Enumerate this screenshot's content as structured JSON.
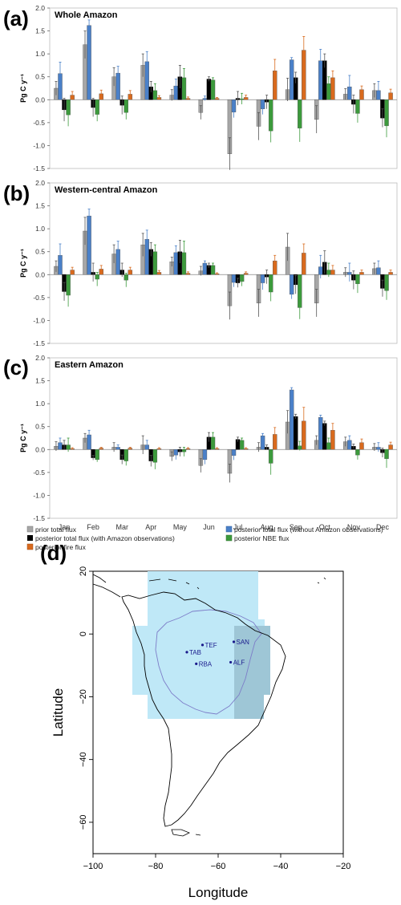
{
  "panel_letters": [
    "(a)",
    "(b)",
    "(c)",
    "(d)"
  ],
  "chart_data": [
    {
      "type": "bar",
      "title": "Whole Amazon",
      "ylabel": "Pg C y⁻¹",
      "ylim": [
        -1.5,
        2.0
      ],
      "yticks": [
        "2.0",
        "1.5",
        "1.0",
        "0.5",
        "0.0",
        "-0.5",
        "-1.0",
        "-1.5"
      ],
      "categories": [
        "Jan",
        "Feb",
        "Mar",
        "Apr",
        "May",
        "Jun",
        "Jul",
        "Aug",
        "Sep",
        "Oct",
        "Nov",
        "Dec"
      ],
      "series": [
        {
          "name": "prior total flux",
          "values": [
            0.25,
            1.2,
            0.5,
            0.75,
            0.1,
            -0.28,
            -1.18,
            -0.58,
            0.22,
            -0.43,
            0.12,
            0.2
          ],
          "errors": [
            0.15,
            0.3,
            0.2,
            0.25,
            0.12,
            0.15,
            0.35,
            0.3,
            0.25,
            0.3,
            0.12,
            0.15
          ]
        },
        {
          "name": "posterior total flux (without Amazon observations)",
          "values": [
            0.57,
            1.62,
            0.58,
            0.83,
            0.3,
            0.03,
            -0.27,
            -0.2,
            0.87,
            0.85,
            0.28,
            0.2
          ],
          "errors": [
            0.25,
            0.12,
            0.15,
            0.22,
            0.15,
            0.05,
            0.12,
            0.12,
            0.05,
            0.25,
            0.25,
            0.2
          ]
        },
        {
          "name": "posterior total flux (with Amazon observations)",
          "values": [
            -0.22,
            -0.17,
            -0.12,
            0.28,
            0.5,
            0.45,
            0.03,
            -0.05,
            0.48,
            0.85,
            -0.1,
            -0.4
          ],
          "errors": [
            0.25,
            0.2,
            0.2,
            0.12,
            0.25,
            0.05,
            0.15,
            0.15,
            0.12,
            0.15,
            0.2,
            0.2
          ]
        },
        {
          "name": "posterior NBE flux",
          "values": [
            -0.33,
            -0.32,
            -0.28,
            0.2,
            0.48,
            0.43,
            0.02,
            -0.68,
            -0.62,
            0.35,
            -0.3,
            -0.57
          ],
          "errors": [
            0.25,
            0.15,
            0.15,
            0.15,
            0.2,
            0.05,
            0.12,
            0.25,
            0.3,
            0.15,
            0.2,
            0.25
          ]
        },
        {
          "name": "posterior fire flux",
          "values": [
            0.1,
            0.13,
            0.12,
            0.05,
            0.03,
            0.03,
            0.05,
            0.63,
            1.08,
            0.48,
            0.22,
            0.15
          ],
          "errors": [
            0.08,
            0.08,
            0.08,
            0.04,
            0.03,
            0.02,
            0.05,
            0.25,
            0.3,
            0.15,
            0.08,
            0.08
          ]
        }
      ]
    },
    {
      "type": "bar",
      "title": "Western-central Amazon",
      "ylabel": "Pg C y⁻¹",
      "ylim": [
        -1.5,
        2.0
      ],
      "yticks": [
        "2.0",
        "1.5",
        "1.0",
        "0.5",
        "0.0",
        "-0.5",
        "-1.0",
        "-1.5"
      ],
      "categories": [
        "Jan",
        "Feb",
        "Mar",
        "Apr",
        "May",
        "Jun",
        "Jul",
        "Aug",
        "Sep",
        "Oct",
        "Nov",
        "Dec"
      ],
      "series": [
        {
          "name": "prior total flux",
          "values": [
            0.18,
            0.95,
            0.45,
            0.65,
            0.28,
            0.08,
            -0.68,
            -0.62,
            0.6,
            -0.62,
            0.05,
            0.13
          ],
          "errors": [
            0.12,
            0.3,
            0.2,
            0.25,
            0.1,
            0.1,
            0.3,
            0.3,
            0.3,
            0.3,
            0.1,
            0.12
          ]
        },
        {
          "name": "posterior total flux (without Amazon observations)",
          "values": [
            0.42,
            1.28,
            0.55,
            0.77,
            0.48,
            0.25,
            -0.17,
            -0.18,
            -0.43,
            0.17,
            0.05,
            0.15
          ],
          "errors": [
            0.25,
            0.15,
            0.18,
            0.2,
            0.15,
            0.05,
            0.1,
            0.15,
            0.1,
            0.25,
            0.2,
            0.15
          ]
        },
        {
          "name": "posterior total flux (with Amazon observations)",
          "values": [
            -0.37,
            0.05,
            0.1,
            0.55,
            0.5,
            0.2,
            -0.18,
            -0.05,
            -0.22,
            0.27,
            -0.12,
            -0.3
          ],
          "errors": [
            0.2,
            0.2,
            0.15,
            0.15,
            0.25,
            0.05,
            0.1,
            0.15,
            0.2,
            0.25,
            0.2,
            0.18
          ]
        },
        {
          "name": "posterior NBE flux",
          "values": [
            -0.45,
            -0.1,
            -0.12,
            0.5,
            0.48,
            0.2,
            -0.15,
            -0.38,
            -0.72,
            0.1,
            -0.2,
            -0.35
          ],
          "errors": [
            0.25,
            0.15,
            0.15,
            0.15,
            0.25,
            0.05,
            0.1,
            0.2,
            0.25,
            0.15,
            0.2,
            0.2
          ]
        },
        {
          "name": "posterior fire flux",
          "values": [
            0.1,
            0.12,
            0.1,
            0.05,
            0.03,
            0.02,
            0.03,
            0.3,
            0.47,
            0.1,
            0.05,
            0.05
          ],
          "errors": [
            0.06,
            0.08,
            0.06,
            0.04,
            0.03,
            0.02,
            0.03,
            0.12,
            0.2,
            0.1,
            0.05,
            0.05
          ]
        }
      ]
    },
    {
      "type": "bar",
      "title": "Eastern Amazon",
      "ylabel": "Pg C y⁻¹",
      "ylim": [
        -1.5,
        2.0
      ],
      "yticks": [
        "2.0",
        "1.5",
        "1.0",
        "0.5",
        "0.0",
        "-0.5",
        "-1.0",
        "-1.5"
      ],
      "categories": [
        "Jan",
        "Feb",
        "Mar",
        "Apr",
        "May",
        "Jun",
        "Jul",
        "Aug",
        "Sep",
        "Oct",
        "Nov",
        "Dec"
      ],
      "series": [
        {
          "name": "prior total flux",
          "values": [
            0.07,
            0.25,
            0.05,
            0.1,
            -0.15,
            -0.35,
            -0.52,
            0.05,
            0.6,
            0.2,
            0.17,
            0.05
          ],
          "errors": [
            0.1,
            0.1,
            0.1,
            0.2,
            0.1,
            0.15,
            0.2,
            0.1,
            0.25,
            0.1,
            0.1,
            0.08
          ]
        },
        {
          "name": "posterior total flux (without Amazon observations)",
          "values": [
            0.15,
            0.32,
            0.05,
            0.1,
            -0.12,
            -0.22,
            -0.13,
            0.3,
            1.3,
            0.7,
            0.2,
            0.05
          ],
          "errors": [
            0.1,
            0.1,
            0.05,
            0.1,
            0.1,
            0.1,
            0.1,
            0.05,
            0.05,
            0.05,
            0.1,
            0.1
          ]
        },
        {
          "name": "posterior total flux (with Amazon observations)",
          "values": [
            0.1,
            -0.18,
            -0.22,
            -0.25,
            -0.05,
            0.27,
            0.22,
            0.05,
            0.72,
            0.57,
            0.07,
            -0.07
          ],
          "errors": [
            0.1,
            0.05,
            0.1,
            0.12,
            0.1,
            0.1,
            0.05,
            0.05,
            0.05,
            0.05,
            0.05,
            0.1
          ]
        },
        {
          "name": "posterior NBE flux",
          "values": [
            0.1,
            -0.22,
            -0.25,
            -0.28,
            -0.05,
            0.27,
            0.2,
            -0.3,
            0.08,
            0.15,
            -0.12,
            -0.2
          ],
          "errors": [
            0.15,
            0.05,
            0.1,
            0.15,
            0.1,
            0.1,
            0.05,
            0.25,
            0.1,
            0.1,
            0.1,
            0.2
          ]
        },
        {
          "name": "posterior fire flux",
          "values": [
            0.02,
            0.03,
            0.03,
            0.02,
            0.02,
            0.02,
            0.02,
            0.33,
            0.62,
            0.42,
            0.15,
            0.1
          ],
          "errors": [
            0.02,
            0.02,
            0.02,
            0.02,
            0.02,
            0.02,
            0.02,
            0.15,
            0.3,
            0.15,
            0.08,
            0.06
          ]
        }
      ]
    }
  ],
  "legend": [
    {
      "label": "prior total flux",
      "color": "#a6a6a6"
    },
    {
      "label": "posterior total flux (without Amazon observations)",
      "color": "#4a80c8"
    },
    {
      "label": "posterior total flux (with Amazon observations)",
      "color": "#000000"
    },
    {
      "label": "posterior NBE flux",
      "color": "#3c9a3c"
    },
    {
      "label": "posterior fire flux",
      "color": "#d86a1e"
    }
  ],
  "colors": {
    "prior": "#a6a6a6",
    "posterior_without": "#4a80c8",
    "posterior_with": "#000000",
    "nbe": "#3c9a3c",
    "fire": "#d86a1e",
    "error_bar": "#555555"
  },
  "map": {
    "xlabel": "Longitude",
    "ylabel": "Latitude",
    "xlim": [
      -100,
      -20
    ],
    "ylim": [
      -70,
      20
    ],
    "xticks": [
      -100,
      -80,
      -60,
      -40,
      -20
    ],
    "yticks": [
      20,
      0,
      -20,
      -40,
      -60
    ],
    "region_colors": {
      "western": "#bfe8f7",
      "eastern": "#9ec6d6",
      "basin_outline": "#7d7dc8"
    },
    "stations": [
      {
        "name": "TEF",
        "lon": -65,
        "lat": -3.5
      },
      {
        "name": "TAB",
        "lon": -70,
        "lat": -5.8
      },
      {
        "name": "RBA",
        "lon": -67,
        "lat": -9.5
      },
      {
        "name": "SAN",
        "lon": -55,
        "lat": -2.5
      },
      {
        "name": "ALF",
        "lon": -56,
        "lat": -9
      }
    ]
  }
}
